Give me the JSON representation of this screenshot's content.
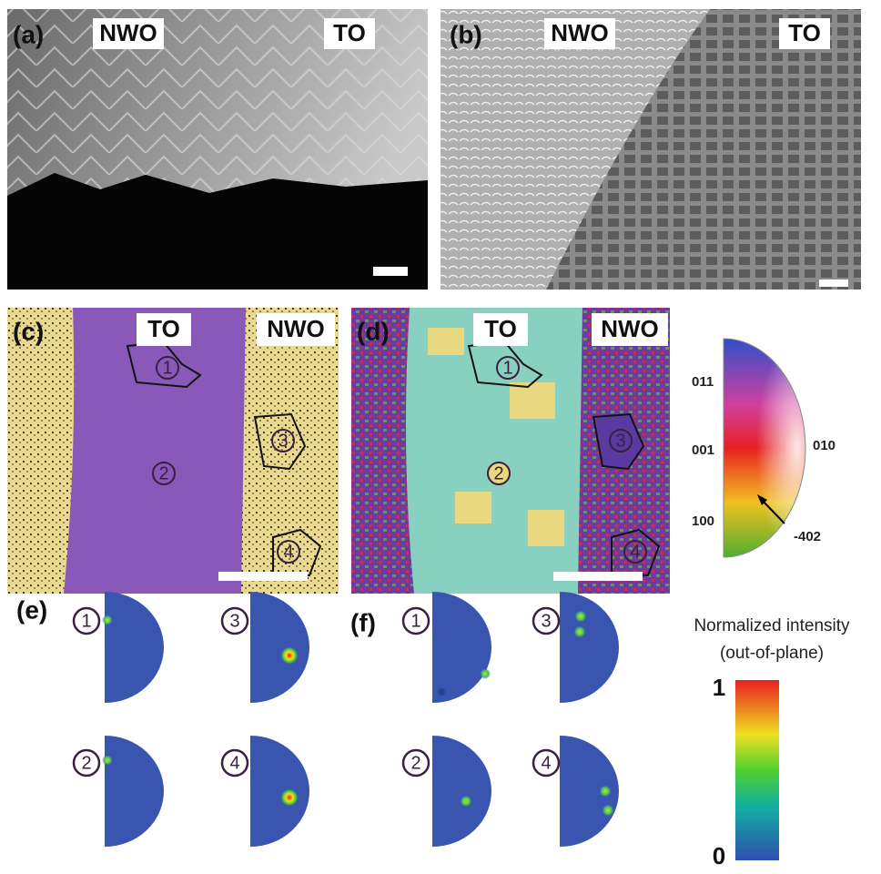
{
  "panels": {
    "a": {
      "label": "(a)",
      "left": "NWO",
      "right": "TO"
    },
    "b": {
      "label": "(b)",
      "left": "NWO",
      "right": "TO"
    },
    "c": {
      "label": "(c)",
      "left": "TO",
      "right": "NWO",
      "grains": [
        "1",
        "2",
        "3",
        "4"
      ]
    },
    "d": {
      "label": "(d)",
      "left": "TO",
      "right": "NWO",
      "grains": [
        "1",
        "2",
        "3",
        "4"
      ]
    }
  },
  "ipf_legend": {
    "poles": [
      "011",
      "001",
      "100",
      "010",
      "-402"
    ]
  },
  "pole_figures": {
    "e": {
      "label": "(e)",
      "grains": [
        "1",
        "3",
        "2",
        "4"
      ]
    },
    "f": {
      "label": "(f)",
      "grains": [
        "1",
        "3",
        "2",
        "4"
      ]
    }
  },
  "colorbar": {
    "title": [
      "Normalized intensity",
      "(out-of-plane)"
    ],
    "max": "1",
    "min": "0"
  }
}
